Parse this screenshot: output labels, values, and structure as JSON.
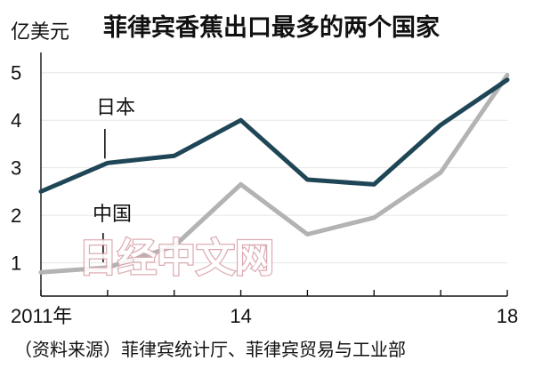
{
  "chart_data": {
    "type": "line",
    "title": "菲律宾香蕉出口最多的两个国家",
    "unit_label": "亿美元",
    "x": [
      2011,
      2012,
      2013,
      2014,
      2015,
      2016,
      2017,
      2018
    ],
    "xtick_labels": [
      {
        "x": 2011,
        "label": "2011年"
      },
      {
        "x": 2014,
        "label": "14"
      },
      {
        "x": 2018,
        "label": "18"
      }
    ],
    "yticks": [
      1,
      2,
      3,
      4,
      5
    ],
    "ylim": [
      0.3,
      5.5
    ],
    "series": [
      {
        "name": "日本",
        "color": "#1f4656",
        "values": [
          2.5,
          3.1,
          3.25,
          4.0,
          2.75,
          2.65,
          3.9,
          4.85
        ]
      },
      {
        "name": "中国",
        "color": "#b3b3b3",
        "values": [
          0.8,
          0.9,
          1.35,
          2.65,
          1.6,
          1.95,
          2.9,
          4.95
        ]
      }
    ],
    "grid": "horizontal",
    "source": "（资料来源）菲律宾统计厅、菲律宾贸易与工业部"
  },
  "watermark": "日经中文网"
}
